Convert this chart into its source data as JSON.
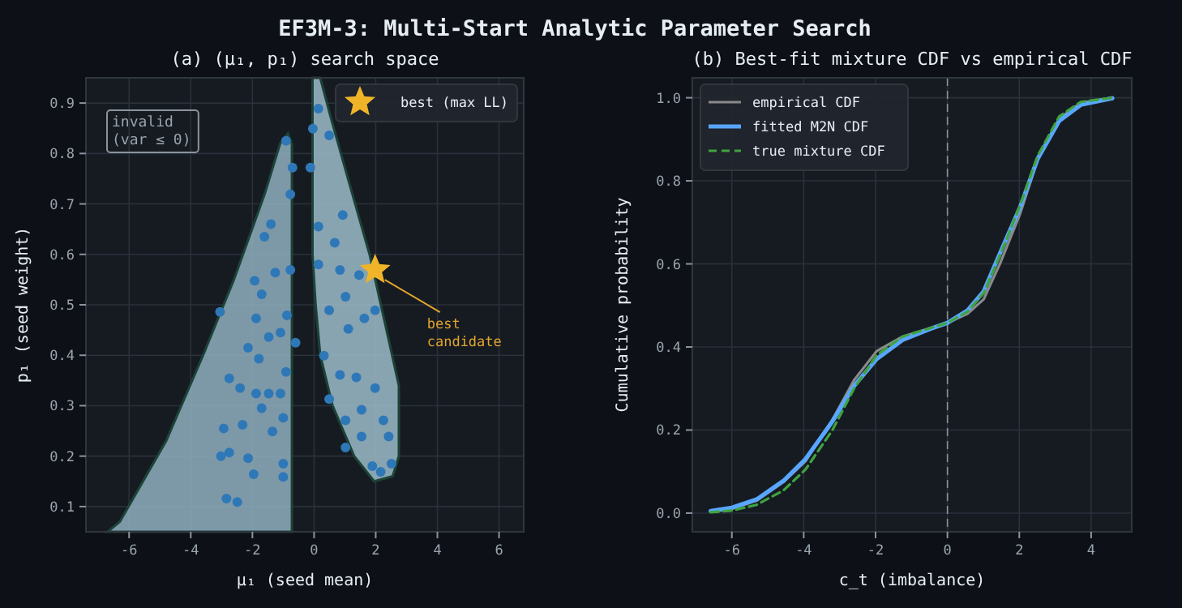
{
  "chart_data": [
    {
      "type": "scatter",
      "title": "EF3M-3: Multi-Start Analytic Parameter Search",
      "subtitle": "(a)  (μ₁, p₁) search space",
      "xlabel": "μ₁  (seed mean)",
      "ylabel": "p₁  (seed weight)",
      "xlim": [
        -7.4,
        6.8
      ],
      "ylim": [
        0.05,
        0.95
      ],
      "xticks": [
        -6,
        -4,
        -2,
        0,
        2,
        4,
        6
      ],
      "yticks": [
        0.1,
        0.2,
        0.3,
        0.4,
        0.5,
        0.6,
        0.7,
        0.8,
        0.9
      ],
      "grid": true,
      "legend": "top right",
      "annotations": [
        "invalid\n(var ≤ 0)",
        {
          "text": "best\ncandidate",
          "x": 1.98,
          "y": 0.569
        }
      ],
      "series": [
        {
          "marker": "circle",
          "color": "#2f78b8",
          "x": [
            -2.84,
            -2.49,
            -2.75,
            -3.02,
            -2.14,
            -2.32,
            -2.93,
            -1.35,
            -1.7,
            -1.47,
            -1.0,
            -1.09,
            -0.91,
            -2.4,
            -1.88,
            -2.75,
            -2.14,
            -1.47,
            -1.09,
            -0.88,
            -1.88,
            -1.7,
            -1.93,
            -1.26,
            -0.77,
            -1.61,
            -1.4,
            -0.77,
            -0.7,
            -0.91,
            -1.79,
            -3.05,
            -0.6,
            -1.0,
            -1.96,
            -1.0,
            0.14,
            -0.04,
            0.49,
            -0.12,
            0.14,
            0.93,
            0.67,
            0.14,
            0.84,
            1.46,
            1.02,
            0.49,
            1.11,
            1.63,
            1.98,
            0.32,
            0.84,
            1.37,
            1.98,
            0.49,
            1.02,
            1.54,
            2.25,
            1.54,
            2.42,
            1.89,
            2.51,
            1.02,
            2.16
          ],
          "values": [
            0.116,
            0.109,
            0.207,
            0.2,
            0.196,
            0.262,
            0.255,
            0.249,
            0.295,
            0.324,
            0.185,
            0.324,
            0.367,
            0.335,
            0.324,
            0.354,
            0.415,
            0.436,
            0.445,
            0.479,
            0.473,
            0.521,
            0.548,
            0.564,
            0.569,
            0.635,
            0.66,
            0.719,
            0.772,
            0.825,
            0.393,
            0.486,
            0.425,
            0.276,
            0.164,
            0.159,
            0.889,
            0.849,
            0.836,
            0.772,
            0.655,
            0.678,
            0.623,
            0.58,
            0.569,
            0.559,
            0.516,
            0.489,
            0.452,
            0.473,
            0.489,
            0.399,
            0.361,
            0.356,
            0.335,
            0.313,
            0.271,
            0.292,
            0.271,
            0.239,
            0.239,
            0.18,
            0.185,
            0.217,
            0.169
          ]
        },
        {
          "name": "best (max LL)",
          "marker": "star",
          "color": "#f0b429",
          "x": [
            1.98
          ],
          "values": [
            0.569
          ]
        }
      ]
    },
    {
      "type": "line",
      "title": "(b)  Best-fit mixture CDF vs empirical CDF",
      "xlabel": "c_t  (imbalance)",
      "ylabel": "Cumulative probability",
      "xlim": [
        -7.1,
        5.13
      ],
      "ylim": [
        -0.045,
        1.048
      ],
      "xticks": [
        -6,
        -4,
        -2,
        0,
        2,
        4
      ],
      "yticks": [
        {
          "value": 0,
          "label": "0.0"
        },
        0.2,
        0.4,
        0.6,
        0.8,
        {
          "value": 1,
          "label": "1.0"
        }
      ],
      "grid": true,
      "legend": "top left",
      "ref_lines": [
        {
          "axis": "x",
          "value": 0,
          "color": "#8b949e",
          "line_style": "dashed"
        }
      ],
      "x": [
        -6.59,
        -6,
        -5.31,
        -4.56,
        -3.95,
        -3.2,
        -2.6,
        -1.97,
        -1.25,
        -0.5,
        0,
        0.56,
        1.01,
        1.46,
        2.02,
        2.51,
        3.11,
        3.71,
        4.59
      ],
      "series": [
        {
          "name": "empirical CDF",
          "color": "#8a8a8a",
          "line_style": "solid",
          "values": [
            0.003,
            0.01,
            0.03,
            0.075,
            0.125,
            0.225,
            0.32,
            0.39,
            0.425,
            0.445,
            0.458,
            0.48,
            0.515,
            0.6,
            0.72,
            0.85,
            0.95,
            0.988,
            1.0
          ]
        },
        {
          "name": "fitted M2N CDF",
          "color": "#58a6ff",
          "line_style": "solid",
          "values": [
            0.005,
            0.013,
            0.033,
            0.078,
            0.13,
            0.221,
            0.306,
            0.371,
            0.417,
            0.443,
            0.458,
            0.488,
            0.534,
            0.625,
            0.736,
            0.853,
            0.944,
            0.983,
            0.999
          ]
        },
        {
          "name": "true mixture CDF",
          "color": "#3fa33f",
          "line_style": "dashed",
          "values": [
            0.002,
            0.006,
            0.02,
            0.055,
            0.105,
            0.2,
            0.3,
            0.38,
            0.425,
            0.445,
            0.458,
            0.485,
            0.53,
            0.62,
            0.74,
            0.86,
            0.955,
            0.99,
            1.0
          ]
        }
      ]
    }
  ]
}
